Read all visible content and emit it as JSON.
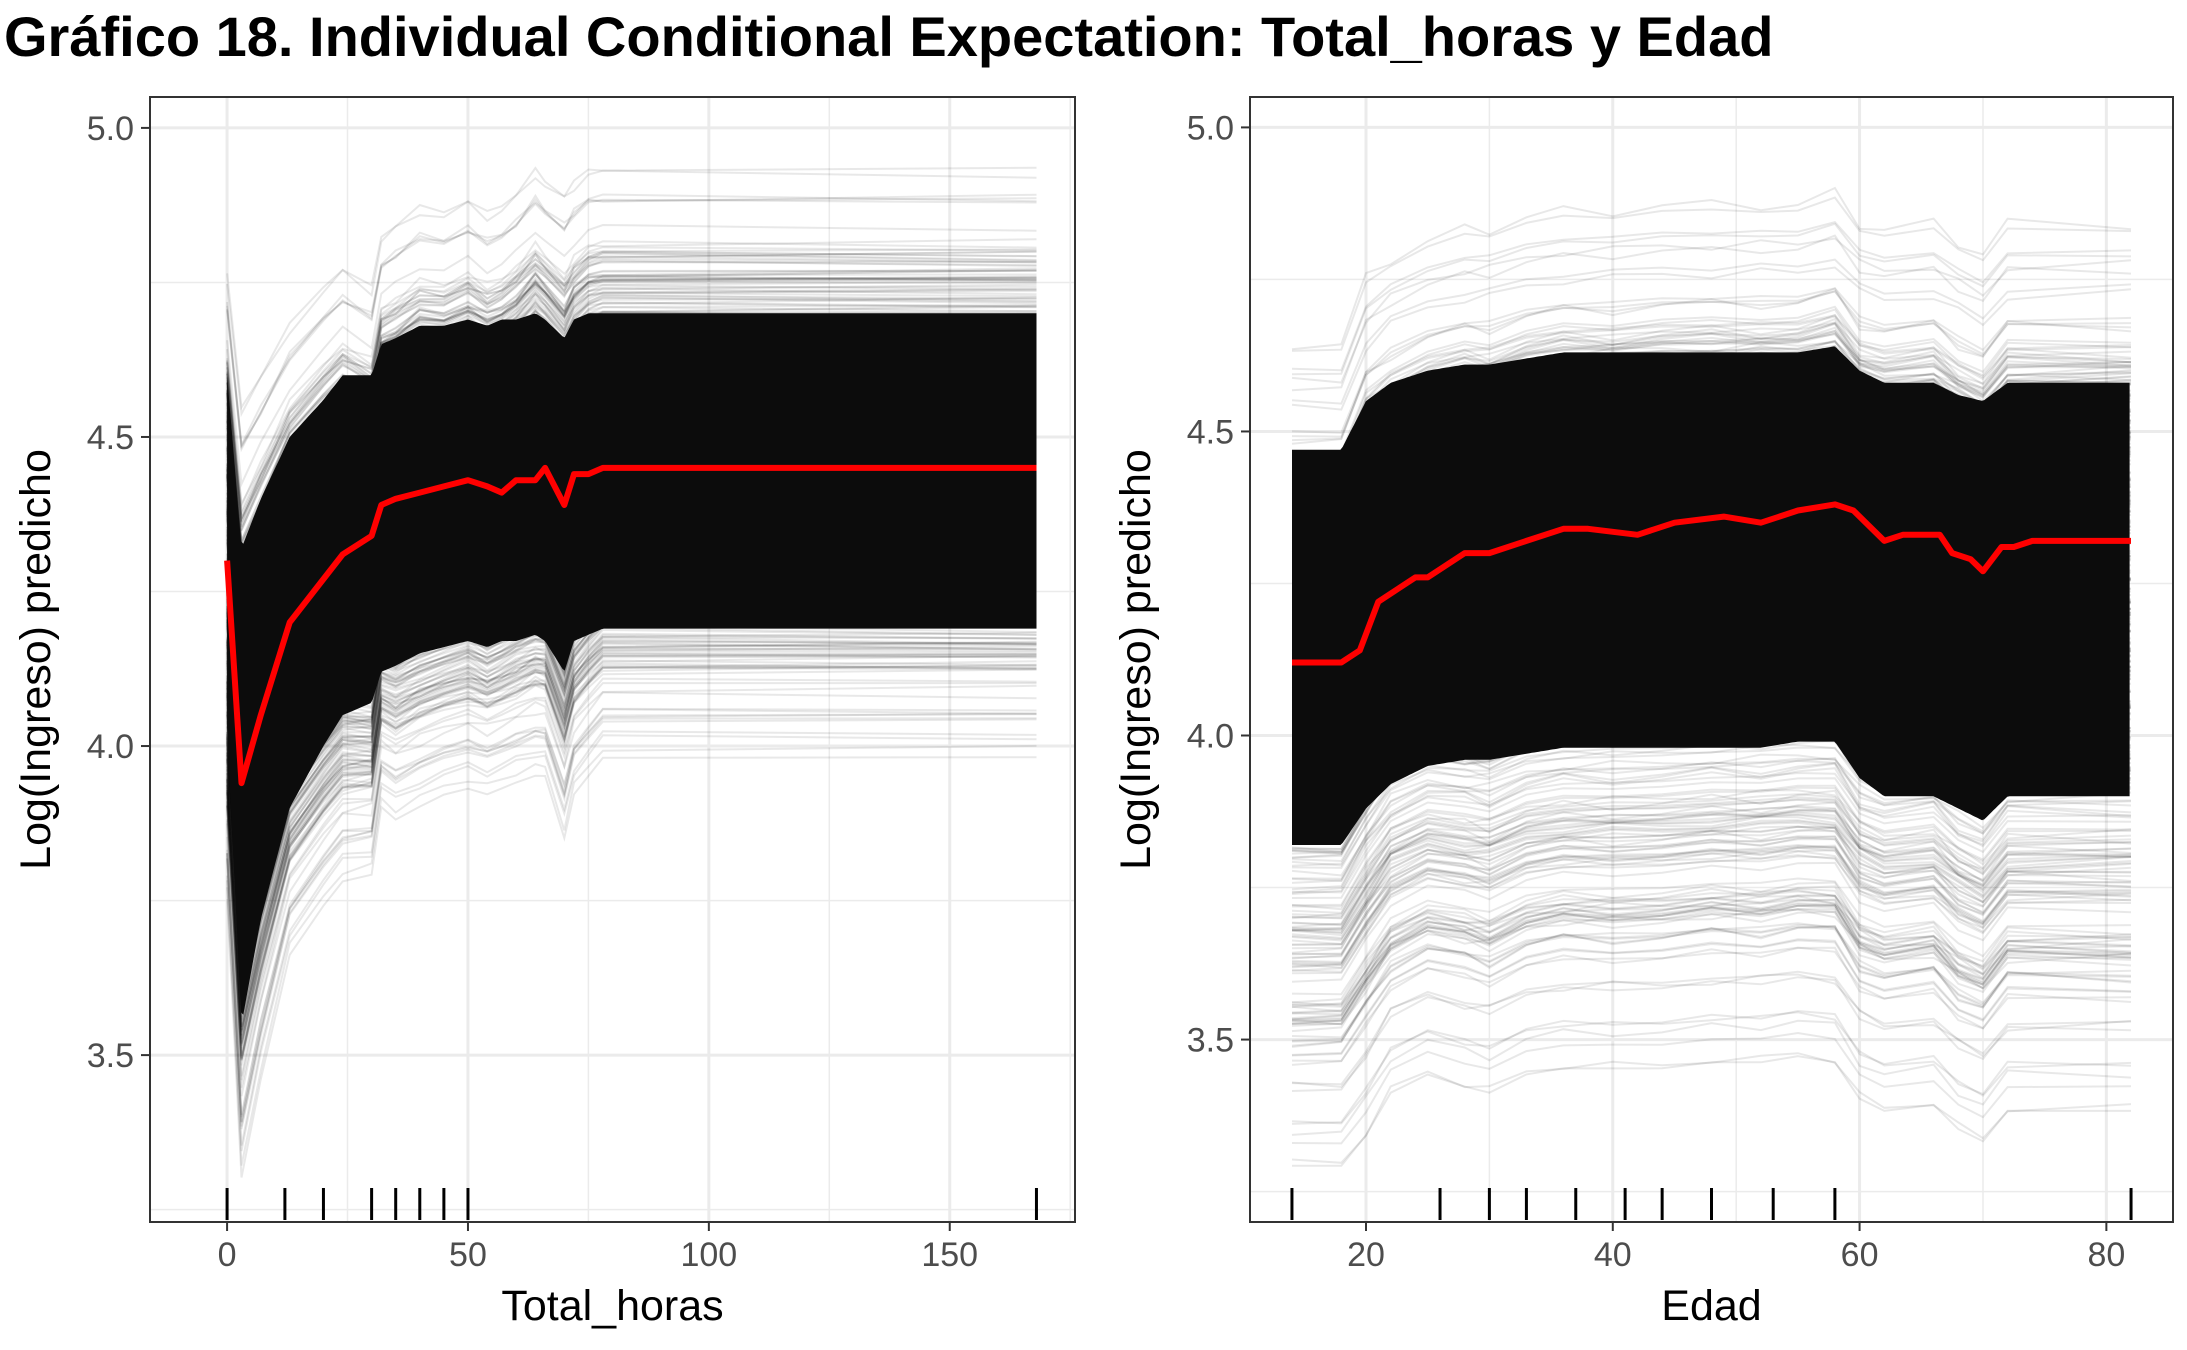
{
  "title": "Gráfico 18. Individual Conditional Expectation: Total_horas y Edad",
  "colors": {
    "ice_lines": "#000000",
    "average_line": "#ff0000",
    "grid": "#ebebeb",
    "panel_border": "#333333"
  },
  "chart_data": [
    {
      "type": "line",
      "xlabel": "Total_horas",
      "ylabel": "Log(Ingreso) predicho",
      "xlim": [
        -16,
        176
      ],
      "ylim": [
        3.23,
        5.05
      ],
      "x_ticks": [
        0,
        50,
        100,
        150
      ],
      "x_tick_labels": [
        "0",
        "50",
        "100",
        "150"
      ],
      "y_ticks": [
        3.5,
        4.0,
        4.5,
        5.0
      ],
      "y_tick_labels": [
        "3.5",
        "4.0",
        "4.5",
        "5.0"
      ],
      "grid": true,
      "rug_x": [
        0,
        12,
        20,
        30,
        35,
        40,
        45,
        50,
        168
      ],
      "ice_lines": {
        "x": [
          0,
          3,
          7,
          13,
          20,
          24,
          30,
          32,
          35,
          40,
          45,
          50,
          54,
          57,
          60,
          64,
          66,
          70,
          72,
          75,
          78,
          168
        ],
        "band_low": [
          3.75,
          3.3,
          3.46,
          3.66,
          3.74,
          3.78,
          3.79,
          3.9,
          3.88,
          3.9,
          3.92,
          3.93,
          3.92,
          3.93,
          3.94,
          3.95,
          3.95,
          3.85,
          3.92,
          3.95,
          3.98,
          3.98
        ],
        "band_high": [
          4.78,
          4.57,
          4.62,
          4.7,
          4.76,
          4.79,
          4.76,
          4.84,
          4.86,
          4.89,
          4.88,
          4.9,
          4.88,
          4.89,
          4.91,
          4.95,
          4.93,
          4.91,
          4.93,
          4.95,
          4.95,
          4.95
        ],
        "core_low": [
          4.03,
          3.55,
          3.72,
          3.9,
          4.0,
          4.05,
          4.07,
          4.12,
          4.13,
          4.15,
          4.16,
          4.17,
          4.16,
          4.17,
          4.17,
          4.18,
          4.17,
          4.12,
          4.17,
          4.18,
          4.19,
          4.19
        ],
        "core_high": [
          4.6,
          4.32,
          4.4,
          4.5,
          4.56,
          4.6,
          4.6,
          4.65,
          4.66,
          4.68,
          4.68,
          4.69,
          4.68,
          4.69,
          4.69,
          4.7,
          4.69,
          4.66,
          4.69,
          4.7,
          4.7,
          4.7
        ]
      },
      "series": [
        {
          "name": "",
          "x": [
            0,
            3,
            7,
            13,
            20,
            24,
            30,
            32,
            35,
            40,
            45,
            50,
            54,
            57,
            60,
            64,
            66,
            70,
            72,
            75,
            78,
            168
          ],
          "y": [
            4.3,
            3.94,
            4.05,
            4.2,
            4.27,
            4.31,
            4.34,
            4.39,
            4.4,
            4.41,
            4.42,
            4.43,
            4.42,
            4.41,
            4.43,
            4.43,
            4.45,
            4.39,
            4.44,
            4.44,
            4.45,
            4.45
          ]
        }
      ]
    },
    {
      "type": "line",
      "xlabel": "Edad",
      "ylabel": "Log(Ingreso) predicho",
      "xlim": [
        10.6,
        85.4
      ],
      "ylim": [
        3.2,
        5.05
      ],
      "x_ticks": [
        20,
        40,
        60,
        80
      ],
      "x_tick_labels": [
        "20",
        "40",
        "60",
        "80"
      ],
      "y_ticks": [
        3.5,
        4.0,
        4.5,
        5.0
      ],
      "y_tick_labels": [
        "3.5",
        "4.0",
        "4.5",
        "5.0"
      ],
      "grid": true,
      "rug_x": [
        14,
        26,
        30,
        33,
        37,
        41,
        44,
        48,
        53,
        58,
        82
      ],
      "ice_lines": {
        "x": [
          14,
          18,
          20,
          22,
          25,
          28,
          30,
          33,
          36,
          40,
          44,
          48,
          52,
          55,
          58,
          60,
          62,
          66,
          68,
          70,
          72,
          82
        ],
        "band_low": [
          3.29,
          3.29,
          3.34,
          3.41,
          3.44,
          3.42,
          3.41,
          3.44,
          3.45,
          3.45,
          3.45,
          3.46,
          3.46,
          3.47,
          3.46,
          3.4,
          3.38,
          3.39,
          3.35,
          3.33,
          3.38,
          3.38
        ],
        "band_high": [
          4.67,
          4.67,
          4.78,
          4.81,
          4.84,
          4.86,
          4.86,
          4.88,
          4.89,
          4.89,
          4.9,
          4.9,
          4.9,
          4.9,
          4.92,
          4.87,
          4.86,
          4.87,
          4.84,
          4.82,
          4.87,
          4.87
        ],
        "core_low": [
          3.82,
          3.82,
          3.88,
          3.92,
          3.95,
          3.96,
          3.96,
          3.97,
          3.98,
          3.98,
          3.98,
          3.98,
          3.98,
          3.99,
          3.99,
          3.93,
          3.9,
          3.9,
          3.88,
          3.86,
          3.9,
          3.9
        ],
        "core_high": [
          4.47,
          4.47,
          4.55,
          4.58,
          4.6,
          4.61,
          4.61,
          4.62,
          4.63,
          4.63,
          4.63,
          4.63,
          4.63,
          4.63,
          4.64,
          4.6,
          4.58,
          4.58,
          4.56,
          4.55,
          4.58,
          4.58
        ]
      },
      "series": [
        {
          "name": "",
          "x": [
            14,
            18,
            19.5,
            21,
            24,
            25,
            28,
            30,
            33,
            36,
            38,
            42,
            45,
            49,
            52,
            55,
            58,
            59.5,
            62,
            63.5,
            66.5,
            67.5,
            69,
            70,
            71.5,
            72.5,
            74,
            82
          ],
          "y": [
            4.12,
            4.12,
            4.14,
            4.22,
            4.26,
            4.26,
            4.3,
            4.3,
            4.32,
            4.34,
            4.34,
            4.33,
            4.35,
            4.36,
            4.35,
            4.37,
            4.38,
            4.37,
            4.32,
            4.33,
            4.33,
            4.3,
            4.29,
            4.27,
            4.31,
            4.31,
            4.32,
            4.32
          ]
        }
      ]
    }
  ]
}
